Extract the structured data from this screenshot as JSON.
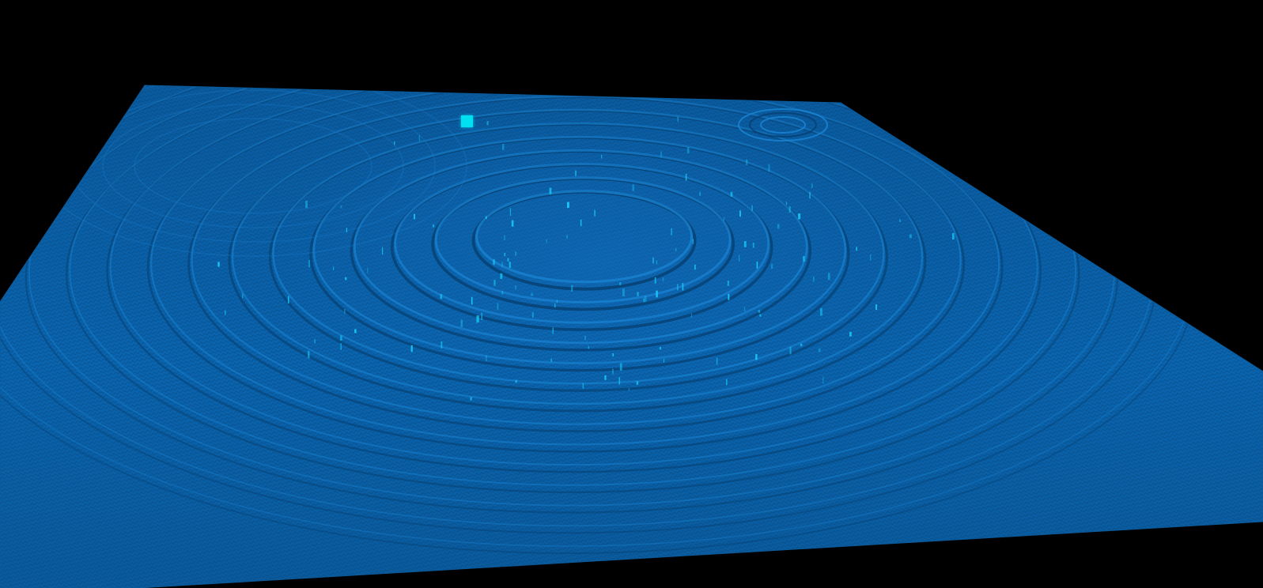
{
  "scene": {
    "background_color": "#000000",
    "surface_color": "#0a65b0",
    "surface_dark_color": "#063f70",
    "highlight_color": "#1ad0ff",
    "marker_color": "#00e0f0",
    "primary_ripple_rings": 14,
    "secondary_ripple_rings": 3
  }
}
